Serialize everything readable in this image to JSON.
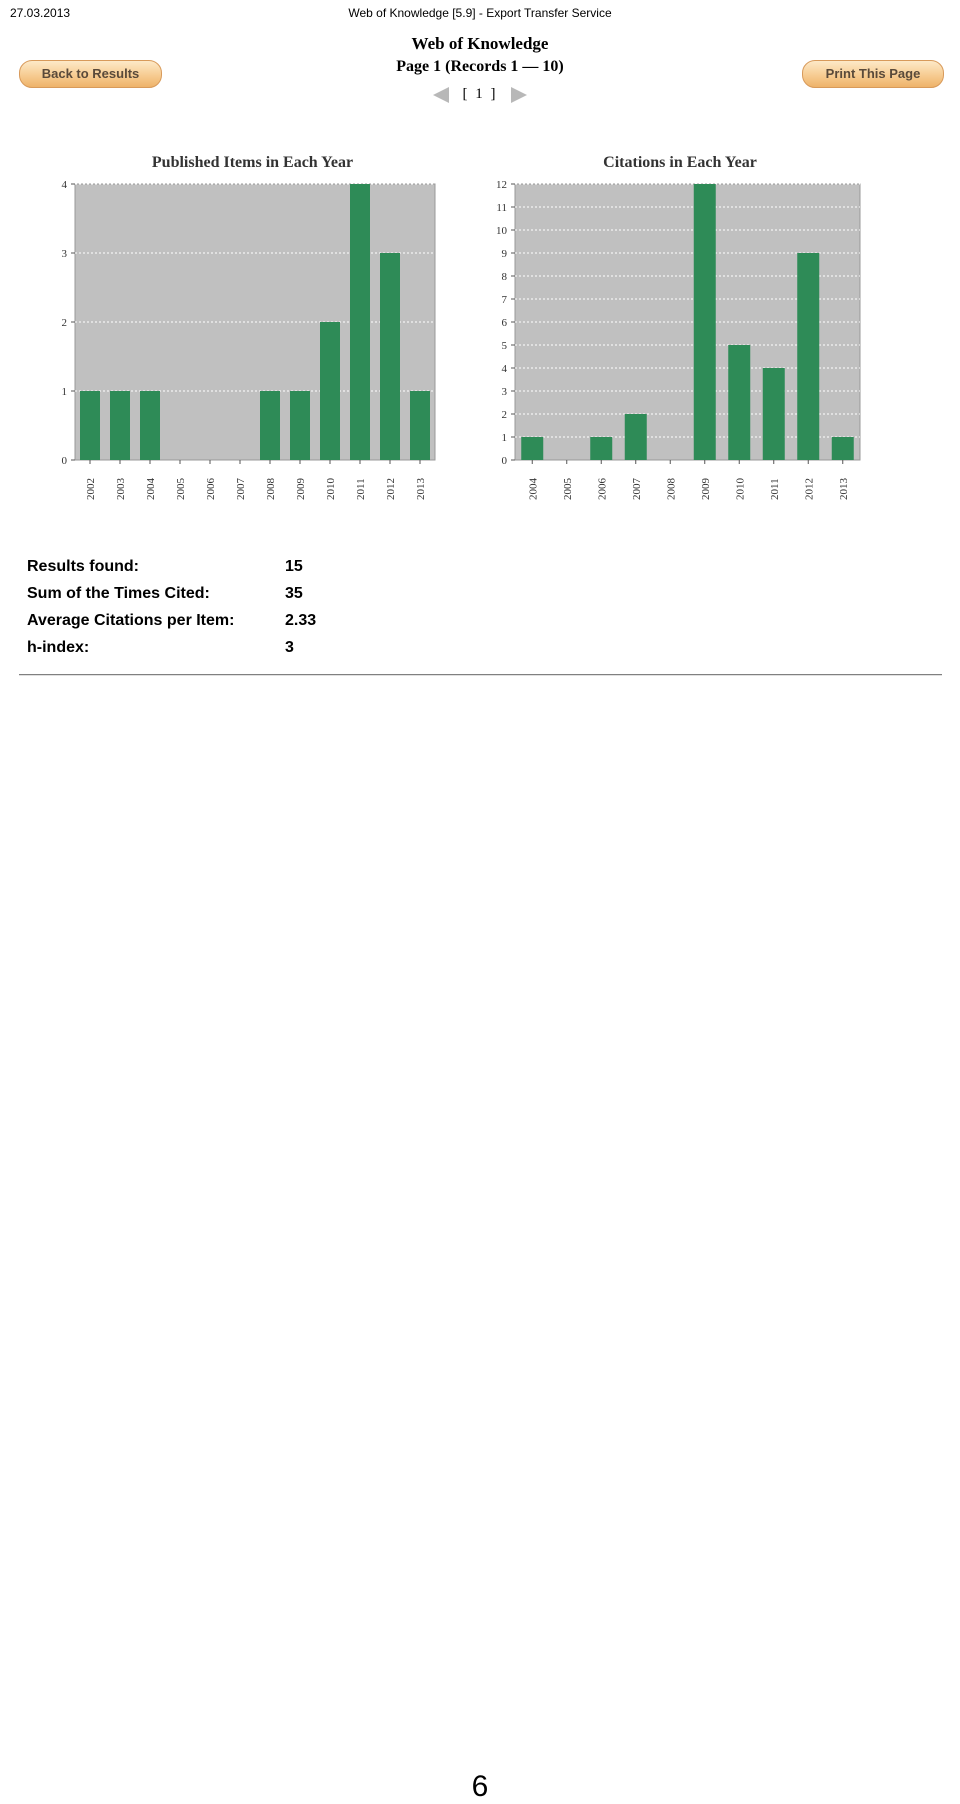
{
  "header": {
    "date": "27.03.2013",
    "title": "Web of Knowledge [5.9] - Export Transfer Service"
  },
  "site_title": "Web of Knowledge",
  "page_info": "Page 1 (Records 1 — 10)",
  "pager": {
    "current": "[ 1 ]"
  },
  "buttons": {
    "back": "Back to Results",
    "print": "Print This Page"
  },
  "chart_data": [
    {
      "type": "bar",
      "title": "Published Items in Each Year",
      "categories": [
        "2002",
        "2003",
        "2004",
        "2005",
        "2006",
        "2007",
        "2008",
        "2009",
        "2010",
        "2011",
        "2012",
        "2013"
      ],
      "values": [
        1,
        1,
        1,
        0,
        0,
        0,
        1,
        1,
        2,
        4,
        3,
        1
      ],
      "ylim": [
        0,
        4
      ],
      "yticks": [
        0,
        1,
        2,
        3,
        4
      ],
      "grid": true,
      "bar_color": "#2e8b57",
      "plot_bg": "#c0c0c0"
    },
    {
      "type": "bar",
      "title": "Citations in Each Year",
      "categories": [
        "2004",
        "2005",
        "2006",
        "2007",
        "2008",
        "2009",
        "2010",
        "2011",
        "2012",
        "2013"
      ],
      "values": [
        1,
        0,
        1,
        2,
        0,
        12,
        5,
        4,
        9,
        1
      ],
      "ylim": [
        0,
        12
      ],
      "yticks": [
        0,
        1,
        2,
        3,
        4,
        5,
        6,
        7,
        8,
        9,
        10,
        11,
        12
      ],
      "grid": true,
      "bar_color": "#2e8b57",
      "plot_bg": "#c0c0c0"
    }
  ],
  "stats": [
    {
      "label": "Results found:",
      "value": "15"
    },
    {
      "label": "Sum of the Times Cited:",
      "value": "35"
    },
    {
      "label": "Average Citations per Item:",
      "value": "2.33"
    },
    {
      "label": "h-index:",
      "value": "3"
    }
  ],
  "footer": {
    "page_number": "6"
  }
}
